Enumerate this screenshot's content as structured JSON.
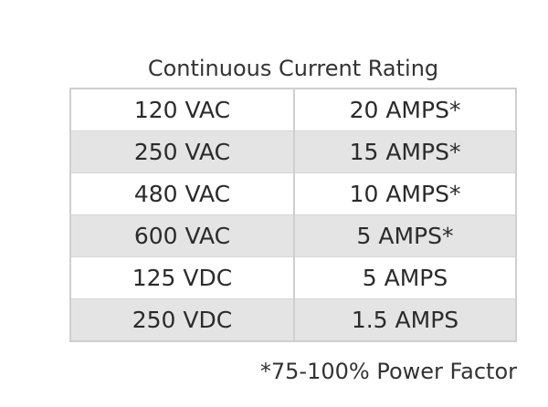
{
  "title": "Continuous Current Rating",
  "rows": [
    {
      "voltage": "120 VAC",
      "current": "20 AMPS*"
    },
    {
      "voltage": "250 VAC",
      "current": "15 AMPS*"
    },
    {
      "voltage": "480 VAC",
      "current": "10 AMPS*"
    },
    {
      "voltage": "600 VAC",
      "current": "5 AMPS*"
    },
    {
      "voltage": "125 VDC",
      "current": "5 AMPS"
    },
    {
      "voltage": "250 VDC",
      "current": "1.5 AMPS"
    }
  ],
  "footnote": "*75-100% Power Factor"
}
